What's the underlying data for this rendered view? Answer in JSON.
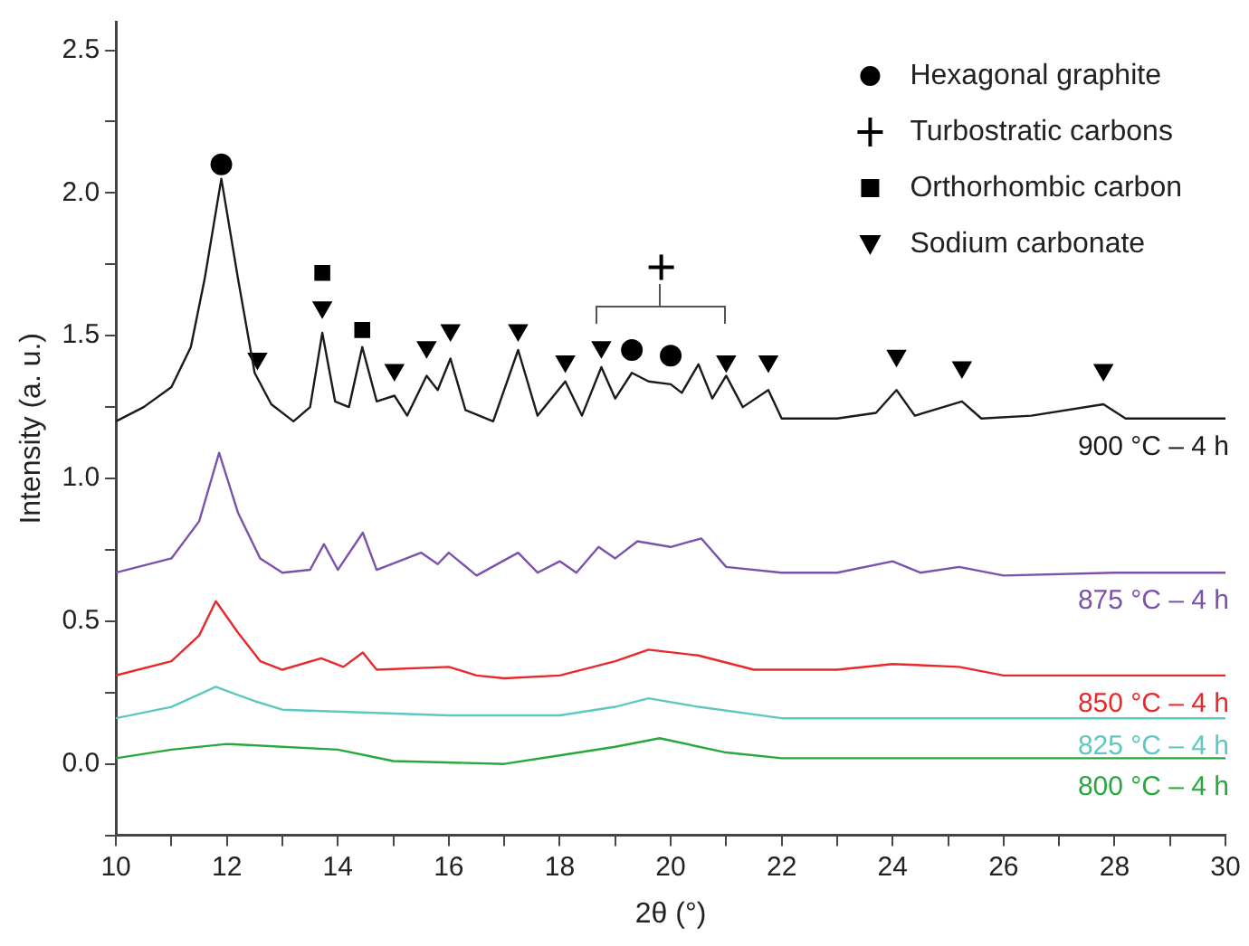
{
  "chart_data": {
    "type": "line",
    "xlabel": "2θ (°)",
    "ylabel": "Intensity (a. u.)",
    "xlim": [
      10,
      30
    ],
    "ylim": [
      -0.25,
      2.6
    ],
    "xticks": [
      10,
      {
        "value": 11,
        "label": null
      },
      12,
      {
        "value": 13,
        "label": null
      },
      14,
      {
        "value": 15,
        "label": null
      },
      16,
      {
        "value": 17,
        "label": null
      },
      18,
      {
        "value": 19,
        "label": null
      },
      20,
      {
        "value": 21,
        "label": null
      },
      22,
      {
        "value": 23,
        "label": null
      },
      24,
      {
        "value": 25,
        "label": null
      },
      26,
      {
        "value": 27,
        "label": null
      },
      28,
      {
        "value": 29,
        "label": null
      },
      30
    ],
    "yticks": [
      {
        "value": -0.25,
        "label": null
      },
      {
        "value": 0,
        "label": "0.0"
      },
      {
        "value": 0.25,
        "label": null
      },
      0.5,
      {
        "value": 0.75,
        "label": null
      },
      {
        "value": 1,
        "label": "1.0"
      },
      {
        "value": 1.25,
        "label": null
      },
      1.5,
      {
        "value": 1.75,
        "label": null
      },
      {
        "value": 2,
        "label": "2.0"
      },
      {
        "value": 2.25,
        "label": null
      },
      2.5
    ],
    "grid": false,
    "legend": "top right",
    "series": [
      {
        "name": "900 °C – 4 h",
        "color": "#1a1a1a",
        "marker": "none",
        "x": [
          10,
          10.5,
          11,
          11.35,
          11.6,
          11.9,
          12.2,
          12.5,
          12.8,
          13.2,
          13.5,
          13.72,
          13.95,
          14.2,
          14.44,
          14.7,
          15.02,
          15.25,
          15.6,
          15.8,
          16.03,
          16.3,
          16.8,
          17.25,
          17.6,
          18.1,
          18.4,
          18.75,
          19.0,
          19.3,
          19.6,
          20.0,
          20.2,
          20.5,
          20.75,
          21.0,
          21.3,
          21.76,
          22.0,
          23.0,
          23.7,
          24.07,
          24.4,
          25.25,
          25.6,
          26.5,
          27.8,
          28.2,
          30
        ],
        "values": [
          1.2,
          1.25,
          1.32,
          1.46,
          1.7,
          2.05,
          1.7,
          1.37,
          1.26,
          1.2,
          1.25,
          1.51,
          1.27,
          1.25,
          1.46,
          1.27,
          1.29,
          1.22,
          1.36,
          1.31,
          1.42,
          1.24,
          1.2,
          1.45,
          1.22,
          1.34,
          1.22,
          1.39,
          1.28,
          1.37,
          1.34,
          1.33,
          1.3,
          1.4,
          1.28,
          1.36,
          1.25,
          1.31,
          1.21,
          1.21,
          1.23,
          1.31,
          1.22,
          1.27,
          1.21,
          1.22,
          1.26,
          1.21,
          1.21
        ]
      },
      {
        "name": "875 °C – 4 h",
        "color": "#7b52ab",
        "marker": "none",
        "x": [
          10,
          11,
          11.5,
          11.86,
          12.2,
          12.6,
          13,
          13.5,
          13.75,
          14.0,
          14.45,
          14.7,
          15.5,
          15.8,
          16.0,
          16.5,
          17.25,
          17.6,
          18.0,
          18.3,
          18.7,
          19.0,
          19.4,
          20.0,
          20.55,
          21.0,
          22,
          23,
          24,
          24.5,
          25.2,
          26,
          28,
          30
        ],
        "values": [
          0.67,
          0.72,
          0.85,
          1.09,
          0.88,
          0.72,
          0.67,
          0.68,
          0.77,
          0.68,
          0.81,
          0.68,
          0.74,
          0.7,
          0.74,
          0.66,
          0.74,
          0.67,
          0.71,
          0.67,
          0.76,
          0.72,
          0.78,
          0.76,
          0.79,
          0.69,
          0.67,
          0.67,
          0.71,
          0.67,
          0.69,
          0.66,
          0.67,
          0.67
        ]
      },
      {
        "name": "850 °C – 4 h",
        "color": "#e8282b",
        "marker": "none",
        "x": [
          10,
          11,
          11.5,
          11.8,
          12.2,
          12.6,
          13,
          13.7,
          14.1,
          14.45,
          14.7,
          16,
          16.5,
          17,
          18,
          19,
          19.6,
          20.5,
          21.5,
          23,
          24,
          25.2,
          26,
          30
        ],
        "values": [
          0.31,
          0.36,
          0.45,
          0.57,
          0.46,
          0.36,
          0.33,
          0.37,
          0.34,
          0.39,
          0.33,
          0.34,
          0.31,
          0.3,
          0.31,
          0.36,
          0.4,
          0.38,
          0.33,
          0.33,
          0.35,
          0.34,
          0.31,
          0.31
        ]
      },
      {
        "name": "825 °C – 4 h",
        "color": "#5cc8c0",
        "marker": "none",
        "x": [
          10,
          11,
          11.8,
          12.5,
          13,
          16,
          18,
          19,
          19.6,
          20.5,
          22,
          30
        ],
        "values": [
          0.16,
          0.2,
          0.27,
          0.22,
          0.19,
          0.17,
          0.17,
          0.2,
          0.23,
          0.2,
          0.16,
          0.16
        ]
      },
      {
        "name": "800 °C – 4 h",
        "color": "#27a83c",
        "marker": "none",
        "x": [
          10,
          11,
          12,
          14,
          15,
          17,
          18,
          19,
          19.8,
          21,
          22,
          30
        ],
        "values": [
          0.02,
          0.05,
          0.07,
          0.05,
          0.01,
          0.0,
          0.03,
          0.06,
          0.09,
          0.04,
          0.02,
          0.02
        ]
      },
      {
        "name": "Hexagonal graphite",
        "type": "scatter",
        "color": "#000000",
        "marker": "circle",
        "x": [
          11.9,
          19.3,
          20.0
        ],
        "values": [
          2.1,
          1.45,
          1.43
        ]
      },
      {
        "name": "Turbostratic carbons",
        "type": "scatter",
        "color": "#000000",
        "marker": "cross",
        "x": [
          19.83
        ],
        "values": [
          1.74
        ]
      },
      {
        "name": "Orthorhombic carbon",
        "type": "scatter",
        "color": "#000000",
        "marker": "square",
        "x": [
          13.72,
          14.44
        ],
        "values": [
          1.72,
          1.52
        ]
      },
      {
        "name": "Sodium carbonate",
        "type": "scatter",
        "color": "#000000",
        "marker": "triangle",
        "x": [
          12.55,
          13.72,
          15.02,
          15.6,
          16.03,
          17.25,
          18.1,
          18.75,
          21.0,
          21.76,
          24.07,
          25.25,
          27.8
        ],
        "values": [
          1.42,
          1.6,
          1.38,
          1.46,
          1.52,
          1.52,
          1.41,
          1.46,
          1.41,
          1.41,
          1.43,
          1.39,
          1.38
        ]
      }
    ]
  }
}
